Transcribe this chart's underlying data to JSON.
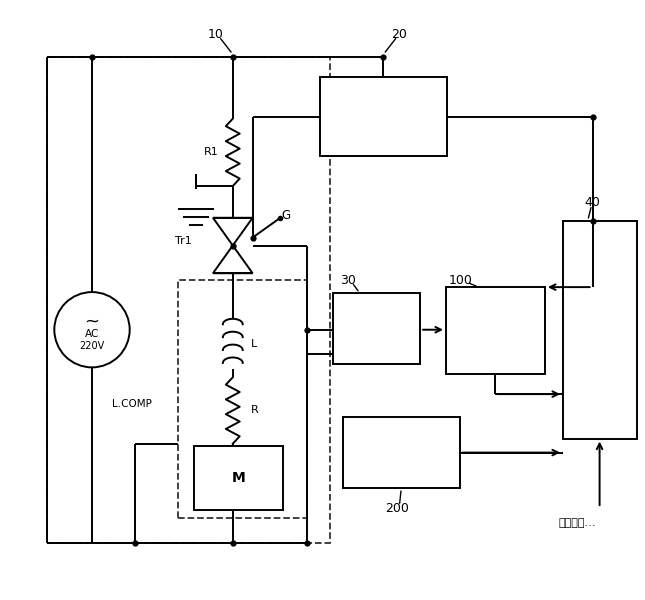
{
  "bg_color": "#ffffff",
  "lc": "#000000",
  "lw": 1.4,
  "fig_w": 6.45,
  "fig_h": 6.0,
  "xlim": [
    0,
    645
  ],
  "ylim": [
    0,
    600
  ]
}
